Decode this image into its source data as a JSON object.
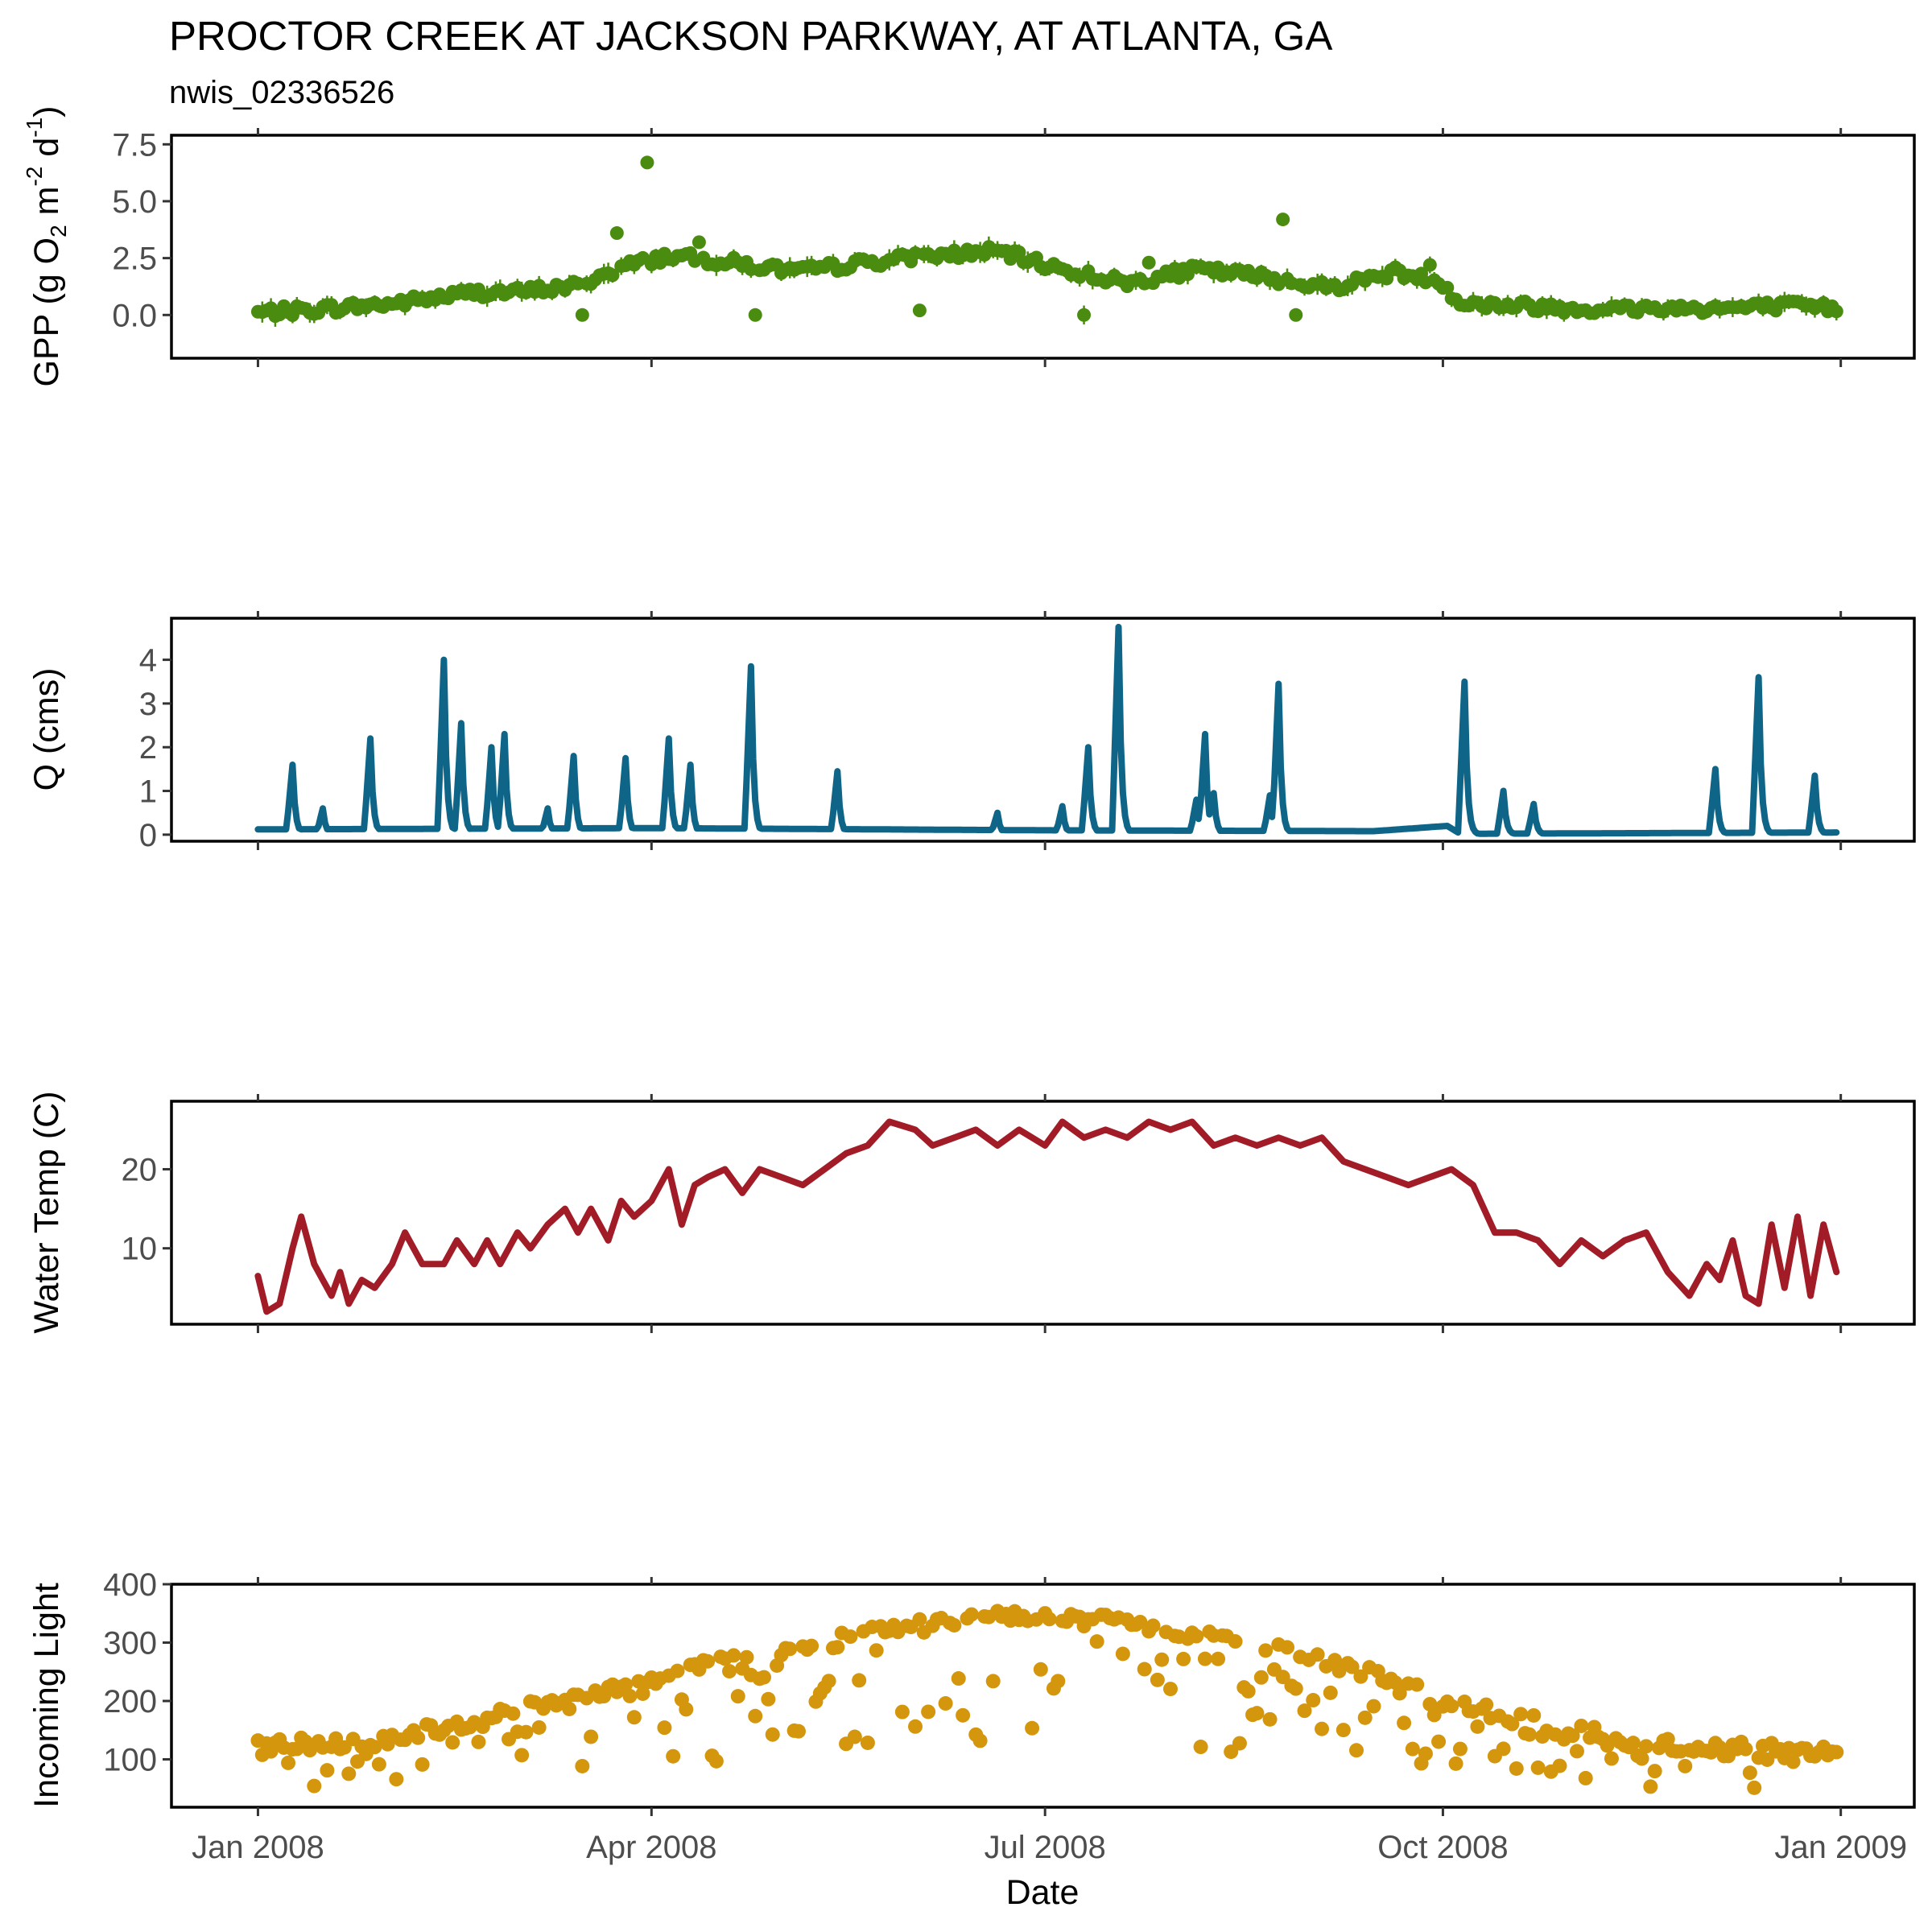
{
  "title": "PROCTOR CREEK AT JACKSON PARKWAY, AT ATLANTA, GA",
  "subtitle": "nwis_02336526",
  "x_axis": {
    "label": "Date",
    "ticks": [
      "Jan 2008",
      "Apr 2008",
      "Jul 2008",
      "Oct 2008",
      "Jan 2009"
    ],
    "range": [
      "2007-12-12",
      "2009-01-18"
    ]
  },
  "chart_data": [
    {
      "type": "scatter",
      "panel": "gpp",
      "ylabel": "GPP (g O2 m-2 d-1)",
      "ylabel_parts": {
        "main": "GPP (g O",
        "sub": "2",
        "m": " m",
        "m_exp": "-2",
        "d": " d",
        "d_exp": "-1",
        "close": ")"
      },
      "yticks": [
        0.0,
        2.5,
        5.0,
        7.5
      ],
      "ytick_labels": [
        "0.0",
        "2.5",
        "5.0",
        "7.5"
      ],
      "ylim": [
        -1.9,
        7.9
      ],
      "color": "#4a8c0f",
      "error_bars": true,
      "anchors_x": [
        "2008-01-01",
        "2008-01-15",
        "2008-02-01",
        "2008-02-20",
        "2008-03-01",
        "2008-03-15",
        "2008-03-25",
        "2008-04-05",
        "2008-04-20",
        "2008-05-05",
        "2008-05-20",
        "2008-06-05",
        "2008-06-20",
        "2008-07-05",
        "2008-07-20",
        "2008-08-05",
        "2008-08-20",
        "2008-09-05",
        "2008-09-20",
        "2008-10-01",
        "2008-10-05",
        "2008-10-20",
        "2008-11-05",
        "2008-11-20",
        "2008-12-05",
        "2008-12-20",
        "2008-12-31"
      ],
      "anchors_y": [
        0.1,
        0.25,
        0.5,
        1.0,
        1.0,
        1.3,
        2.1,
        2.6,
        2.3,
        1.9,
        2.3,
        2.6,
        2.8,
        2.0,
        1.4,
        2.0,
        1.7,
        1.2,
        1.9,
        1.4,
        0.5,
        0.4,
        0.25,
        0.3,
        0.3,
        0.4,
        0.3
      ],
      "outliers": [
        {
          "x": "2008-03-31",
          "y": 6.7
        },
        {
          "x": "2008-08-25",
          "y": 4.2
        },
        {
          "x": "2008-03-24",
          "y": 3.6
        },
        {
          "x": "2008-04-12",
          "y": 3.2
        },
        {
          "x": "2008-03-16",
          "y": 0.0
        },
        {
          "x": "2008-04-25",
          "y": 0.0
        },
        {
          "x": "2008-07-10",
          "y": 0.0
        },
        {
          "x": "2008-08-28",
          "y": 0.0
        },
        {
          "x": "2008-09-28",
          "y": 2.2
        },
        {
          "x": "2008-06-02",
          "y": 0.2
        },
        {
          "x": "2008-07-25",
          "y": 2.3
        }
      ]
    },
    {
      "type": "line",
      "panel": "discharge",
      "ylabel": "Q (cms)",
      "yticks": [
        0,
        1,
        2,
        3,
        4
      ],
      "ytick_labels": [
        "0",
        "1",
        "2",
        "3",
        "4"
      ],
      "ylim": [
        -0.15,
        4.95
      ],
      "color": "#0e6587",
      "baseflow_x": [
        "2008-01-01",
        "2008-04-01",
        "2008-07-01",
        "2008-09-15",
        "2008-10-02",
        "2008-10-05",
        "2008-12-31"
      ],
      "baseflow_y": [
        0.12,
        0.15,
        0.1,
        0.08,
        0.2,
        0.02,
        0.05
      ],
      "peaks": [
        {
          "x": "2008-01-09",
          "y": 1.6
        },
        {
          "x": "2008-01-16",
          "y": 0.6
        },
        {
          "x": "2008-01-27",
          "y": 2.2
        },
        {
          "x": "2008-02-13",
          "y": 4.0
        },
        {
          "x": "2008-02-17",
          "y": 2.55
        },
        {
          "x": "2008-02-24",
          "y": 2.0
        },
        {
          "x": "2008-02-27",
          "y": 2.3
        },
        {
          "x": "2008-03-08",
          "y": 0.6
        },
        {
          "x": "2008-03-14",
          "y": 1.8
        },
        {
          "x": "2008-03-26",
          "y": 1.75
        },
        {
          "x": "2008-04-05",
          "y": 2.2
        },
        {
          "x": "2008-04-10",
          "y": 1.6
        },
        {
          "x": "2008-04-24",
          "y": 3.85
        },
        {
          "x": "2008-05-14",
          "y": 1.45
        },
        {
          "x": "2008-06-20",
          "y": 0.5
        },
        {
          "x": "2008-07-05",
          "y": 0.65
        },
        {
          "x": "2008-07-11",
          "y": 2.0
        },
        {
          "x": "2008-07-18",
          "y": 4.75
        },
        {
          "x": "2008-08-05",
          "y": 0.8
        },
        {
          "x": "2008-08-07",
          "y": 2.3
        },
        {
          "x": "2008-08-09",
          "y": 0.95
        },
        {
          "x": "2008-08-22",
          "y": 0.9
        },
        {
          "x": "2008-08-24",
          "y": 3.45
        },
        {
          "x": "2008-10-06",
          "y": 3.5
        },
        {
          "x": "2008-10-15",
          "y": 1.0
        },
        {
          "x": "2008-10-22",
          "y": 0.7
        },
        {
          "x": "2008-12-03",
          "y": 1.5
        },
        {
          "x": "2008-12-13",
          "y": 3.6
        },
        {
          "x": "2008-12-26",
          "y": 1.35
        }
      ]
    },
    {
      "type": "line",
      "panel": "water-temp",
      "ylabel": "Water Temp (C)",
      "yticks": [
        10,
        20
      ],
      "ytick_labels": [
        "10",
        "20"
      ],
      "ylim": [
        0.4,
        28.6
      ],
      "color": "#a11c27",
      "x": [
        "2008-01-01",
        "2008-01-03",
        "2008-01-06",
        "2008-01-09",
        "2008-01-11",
        "2008-01-14",
        "2008-01-16",
        "2008-01-18",
        "2008-01-20",
        "2008-01-22",
        "2008-01-25",
        "2008-01-28",
        "2008-02-01",
        "2008-02-04",
        "2008-02-08",
        "2008-02-13",
        "2008-02-16",
        "2008-02-20",
        "2008-02-23",
        "2008-02-26",
        "2008-03-01",
        "2008-03-04",
        "2008-03-08",
        "2008-03-12",
        "2008-03-15",
        "2008-03-18",
        "2008-03-22",
        "2008-03-25",
        "2008-03-28",
        "2008-04-01",
        "2008-04-05",
        "2008-04-08",
        "2008-04-11",
        "2008-04-14",
        "2008-04-18",
        "2008-04-22",
        "2008-04-26",
        "2008-05-01",
        "2008-05-06",
        "2008-05-11",
        "2008-05-16",
        "2008-05-21",
        "2008-05-26",
        "2008-06-01",
        "2008-06-05",
        "2008-06-10",
        "2008-06-15",
        "2008-06-20",
        "2008-06-25",
        "2008-07-01",
        "2008-07-05",
        "2008-07-10",
        "2008-07-15",
        "2008-07-20",
        "2008-07-25",
        "2008-07-30",
        "2008-08-04",
        "2008-08-09",
        "2008-08-14",
        "2008-08-19",
        "2008-08-24",
        "2008-08-29",
        "2008-09-03",
        "2008-09-08",
        "2008-09-13",
        "2008-09-18",
        "2008-09-23",
        "2008-09-28",
        "2008-10-03",
        "2008-10-08",
        "2008-10-13",
        "2008-10-18",
        "2008-10-23",
        "2008-10-28",
        "2008-11-02",
        "2008-11-07",
        "2008-11-12",
        "2008-11-17",
        "2008-11-22",
        "2008-11-27",
        "2008-12-01",
        "2008-12-04",
        "2008-12-07",
        "2008-12-10",
        "2008-12-13",
        "2008-12-16",
        "2008-12-19",
        "2008-12-22",
        "2008-12-25",
        "2008-12-28",
        "2008-12-31"
      ],
      "y": [
        6.5,
        2,
        3,
        10,
        14,
        8,
        6,
        4,
        7,
        3,
        6,
        5,
        8,
        12,
        8,
        8,
        11,
        8,
        11,
        8,
        12,
        10,
        13,
        15,
        12,
        15,
        11,
        16,
        14,
        16,
        20,
        13,
        18,
        19,
        20,
        17,
        20,
        19,
        18,
        20,
        22,
        23,
        26,
        25,
        23,
        24,
        25,
        23,
        25,
        23,
        26,
        24,
        25,
        24,
        26,
        25,
        26,
        23,
        24,
        23,
        24,
        23,
        24,
        21,
        20,
        19,
        18,
        19,
        20,
        18,
        12,
        12,
        11,
        8,
        11,
        9,
        11,
        12,
        7,
        4,
        8,
        6,
        11,
        4,
        3,
        13,
        5,
        14,
        4,
        13,
        7
      ]
    },
    {
      "type": "scatter",
      "panel": "light",
      "ylabel": "Incoming Light",
      "yticks": [
        100,
        200,
        300,
        400
      ],
      "ytick_labels": [
        "100",
        "200",
        "300",
        "400"
      ],
      "ylim": [
        18,
        400
      ],
      "color": "#d4960d",
      "upper_x": [
        "2008-01-01",
        "2008-02-01",
        "2008-03-01",
        "2008-04-01",
        "2008-05-01",
        "2008-06-01",
        "2008-06-21",
        "2008-07-15",
        "2008-08-15",
        "2008-09-15",
        "2008-10-01",
        "2008-11-01",
        "2008-12-01",
        "2008-12-31"
      ],
      "upper_y": [
        135,
        145,
        200,
        250,
        300,
        340,
        360,
        350,
        320,
        260,
        210,
        160,
        130,
        130
      ],
      "lower_frac": 0.35
    }
  ]
}
